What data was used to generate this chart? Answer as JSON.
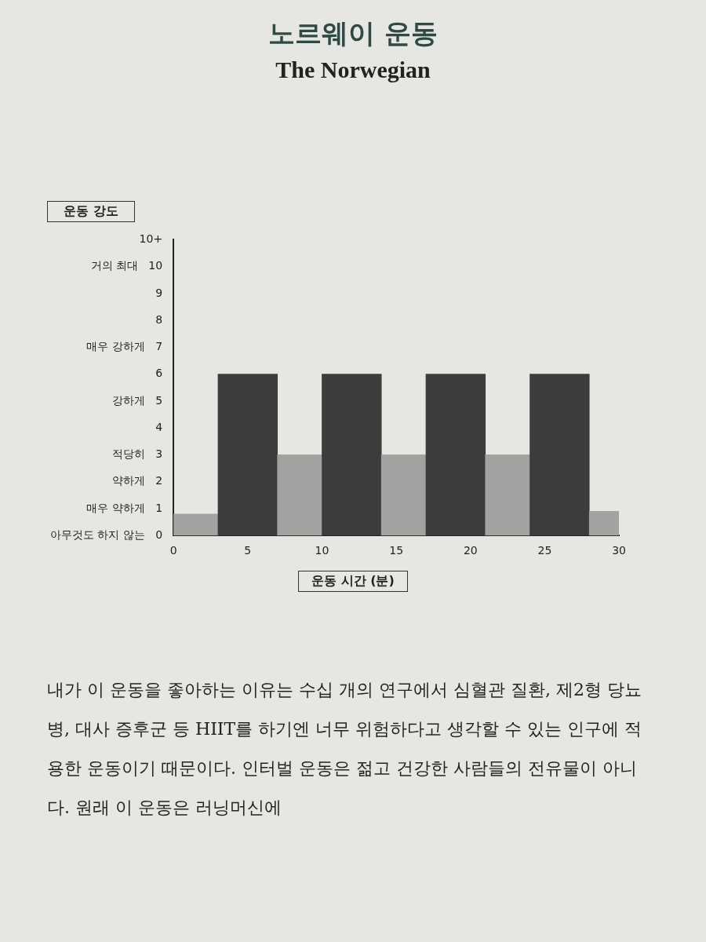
{
  "chart_data": {
    "type": "histogram",
    "title": "노르웨이 운동",
    "subtitle": "The Norwegian",
    "xlabel": "운동 시간 (분)",
    "ylabel": "운동 강도",
    "bins": [
      0,
      3,
      7,
      10,
      14,
      17,
      21,
      24,
      28,
      30
    ],
    "values": [
      0.8,
      6,
      3,
      6,
      3,
      6,
      3,
      6,
      0.9
    ],
    "colors": [
      "#a2a2a0",
      "#3c3c3c",
      "#a2a2a0",
      "#3c3c3c",
      "#a2a2a0",
      "#3c3c3c",
      "#a2a2a0",
      "#3c3c3c",
      "#a2a2a0"
    ],
    "xlim": [
      0,
      30
    ],
    "xticks": [
      0,
      5,
      10,
      15,
      20,
      25,
      30
    ],
    "ylim": [
      0,
      11
    ],
    "yticks": [
      {
        "value": 0,
        "label": "아무것도 하지 않는   0"
      },
      {
        "value": 1,
        "label": "매우 약하게   1"
      },
      {
        "value": 2,
        "label": "약하게   2"
      },
      {
        "value": 3,
        "label": "적당히   3"
      },
      4,
      {
        "value": 5,
        "label": "강하게   5"
      },
      6,
      {
        "value": 7,
        "label": "매우 강하게   7"
      },
      8,
      9,
      {
        "value": 10,
        "label": "거의 최대   10"
      },
      {
        "value": 11,
        "label": "10+"
      }
    ],
    "grid": false,
    "legend": false,
    "annotations": [
      "내가 이 운동을 좋아하는 이유는 수십 개의 연구에서 심혈관 질환, 제2형 당뇨병, 대사 증후군 등 HIIT를 하기엔 너무 위험하다고 생각할 수 있는 인구에 적용한 운동이기 때문이다. 인터벌 운동은 젊고 건강한 사람들의 전유물이 아니다. 원래 이 운동은 러닝머신에"
    ]
  }
}
